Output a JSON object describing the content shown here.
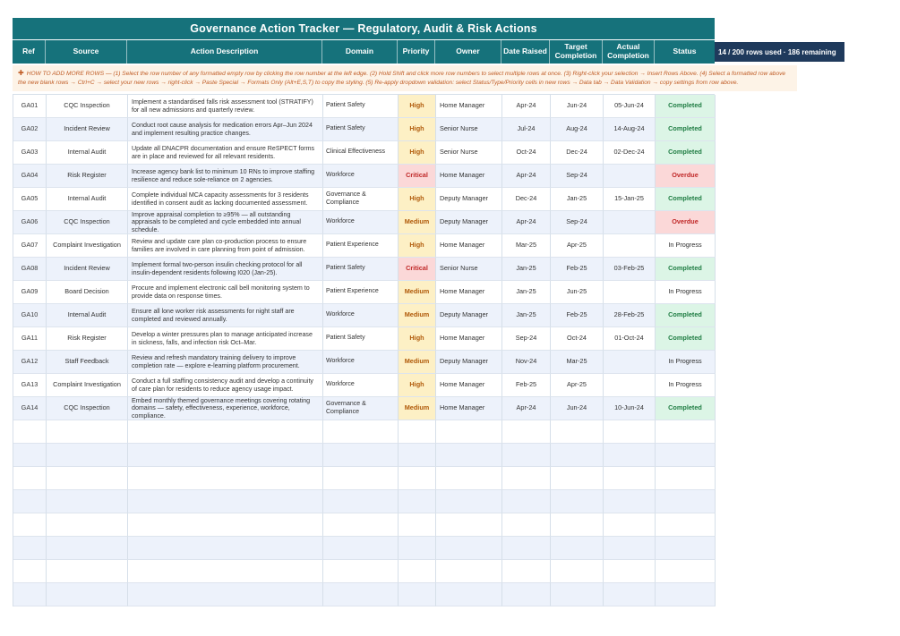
{
  "header": {
    "title": "Governance Action Tracker — Regulatory, Audit & Risk Actions"
  },
  "badge": {
    "text": "14 / 200 rows used  ·  186 remaining"
  },
  "help": {
    "icon": "✚",
    "text": "HOW TO ADD MORE ROWS  —  (1) Select the row number of any formatted empty row by clicking the row number at the left edge.  (2) Hold Shift and click more row numbers to select multiple rows at once.  (3) Right-click your selection  →  Insert Rows Above.  (4) Select a formatted row above the new blank rows  →  Ctrl+C  →  select your new rows  →  right-click  →  Paste Special  →  Formats Only (Alt+E,S,T) to copy the styling.  (5) Re-apply dropdown validation: select Status/Type/Priority cells in new rows  →  Data tab  →  Data Validation  →  copy settings from row above."
  },
  "colors": {
    "teal_header": "#16727b",
    "navy_badge": "#1f3a5c",
    "help_background": "#fdf3e7",
    "help_text": "#bf5a23",
    "row_stripe": "#edf2fb",
    "priority_yellow_bg": "#fdf0c5",
    "priority_yellow_text": "#b05a0a",
    "critical_bg": "#fbd8d8",
    "critical_text": "#c02828",
    "completed_bg": "#dcf5e6",
    "completed_text": "#1e7c42"
  },
  "table": {
    "columns": [
      "Ref",
      "Source",
      "Action Description",
      "Domain",
      "Priority",
      "Owner",
      "Date Raised",
      "Target Completion",
      "Actual Completion",
      "Status"
    ],
    "empty_row_count": 8,
    "rows": [
      {
        "ref": "GA01",
        "source": "CQC Inspection",
        "description": "Implement a standardised falls risk assessment tool (STRATIFY) for all new admissions and quarterly review.",
        "domain": "Patient Safety",
        "priority": "High",
        "owner": "Home Manager",
        "date_raised": "Apr-24",
        "target_completion": "Jun-24",
        "actual_completion": "05-Jun-24",
        "status": "Completed"
      },
      {
        "ref": "GA02",
        "source": "Incident Review",
        "description": "Conduct root cause analysis for medication errors Apr–Jun 2024 and implement resulting practice changes.",
        "domain": "Patient Safety",
        "priority": "High",
        "owner": "Senior Nurse",
        "date_raised": "Jul-24",
        "target_completion": "Aug-24",
        "actual_completion": "14-Aug-24",
        "status": "Completed"
      },
      {
        "ref": "GA03",
        "source": "Internal Audit",
        "description": "Update all DNACPR documentation and ensure ReSPECT forms are in place and reviewed for all relevant residents.",
        "domain": "Clinical Effectiveness",
        "priority": "High",
        "owner": "Senior Nurse",
        "date_raised": "Oct-24",
        "target_completion": "Dec-24",
        "actual_completion": "02-Dec-24",
        "status": "Completed"
      },
      {
        "ref": "GA04",
        "source": "Risk Register",
        "description": "Increase agency bank list to minimum 10 RNs to improve staffing resilience and reduce sole-reliance on 2 agencies.",
        "domain": "Workforce",
        "priority": "Critical",
        "owner": "Home Manager",
        "date_raised": "Apr-24",
        "target_completion": "Sep-24",
        "actual_completion": "",
        "status": "Overdue"
      },
      {
        "ref": "GA05",
        "source": "Internal Audit",
        "description": "Complete individual MCA capacity assessments for 3 residents identified in consent audit as lacking documented assessment.",
        "domain": "Governance & Compliance",
        "priority": "High",
        "owner": "Deputy Manager",
        "date_raised": "Dec-24",
        "target_completion": "Jan-25",
        "actual_completion": "15-Jan-25",
        "status": "Completed"
      },
      {
        "ref": "GA06",
        "source": "CQC Inspection",
        "description": "Improve appraisal completion to ≥95% — all outstanding appraisals to be completed and cycle embedded into annual schedule.",
        "domain": "Workforce",
        "priority": "Medium",
        "owner": "Deputy Manager",
        "date_raised": "Apr-24",
        "target_completion": "Sep-24",
        "actual_completion": "",
        "status": "Overdue"
      },
      {
        "ref": "GA07",
        "source": "Complaint Investigation",
        "description": "Review and update care plan co-production process to ensure families are involved in care planning from point of admission.",
        "domain": "Patient Experience",
        "priority": "High",
        "owner": "Home Manager",
        "date_raised": "Mar-25",
        "target_completion": "Apr-25",
        "actual_completion": "",
        "status": "In Progress"
      },
      {
        "ref": "GA08",
        "source": "Incident Review",
        "description": "Implement formal two-person insulin checking protocol for all insulin-dependent residents following I020 (Jan-25).",
        "domain": "Patient Safety",
        "priority": "Critical",
        "owner": "Senior Nurse",
        "date_raised": "Jan-25",
        "target_completion": "Feb-25",
        "actual_completion": "03-Feb-25",
        "status": "Completed"
      },
      {
        "ref": "GA09",
        "source": "Board Decision",
        "description": "Procure and implement electronic call bell monitoring system to provide data on response times.",
        "domain": "Patient Experience",
        "priority": "Medium",
        "owner": "Home Manager",
        "date_raised": "Jan-25",
        "target_completion": "Jun-25",
        "actual_completion": "",
        "status": "In Progress"
      },
      {
        "ref": "GA10",
        "source": "Internal Audit",
        "description": "Ensure all lone worker risk assessments for night staff are completed and reviewed annually.",
        "domain": "Workforce",
        "priority": "Medium",
        "owner": "Deputy Manager",
        "date_raised": "Jan-25",
        "target_completion": "Feb-25",
        "actual_completion": "28-Feb-25",
        "status": "Completed"
      },
      {
        "ref": "GA11",
        "source": "Risk Register",
        "description": "Develop a winter pressures plan to manage anticipated increase in sickness, falls, and infection risk Oct–Mar.",
        "domain": "Patient Safety",
        "priority": "High",
        "owner": "Home Manager",
        "date_raised": "Sep-24",
        "target_completion": "Oct-24",
        "actual_completion": "01-Oct-24",
        "status": "Completed"
      },
      {
        "ref": "GA12",
        "source": "Staff Feedback",
        "description": "Review and refresh mandatory training delivery to improve completion rate — explore e-learning platform procurement.",
        "domain": "Workforce",
        "priority": "Medium",
        "owner": "Deputy Manager",
        "date_raised": "Nov-24",
        "target_completion": "Mar-25",
        "actual_completion": "",
        "status": "In Progress"
      },
      {
        "ref": "GA13",
        "source": "Complaint Investigation",
        "description": "Conduct a full staffing consistency audit and develop a continuity of care plan for residents to reduce agency usage impact.",
        "domain": "Workforce",
        "priority": "High",
        "owner": "Home Manager",
        "date_raised": "Feb-25",
        "target_completion": "Apr-25",
        "actual_completion": "",
        "status": "In Progress"
      },
      {
        "ref": "GA14",
        "source": "CQC Inspection",
        "description": "Embed monthly themed governance meetings covering rotating domains — safety, effectiveness, experience, workforce, compliance.",
        "domain": "Governance & Compliance",
        "priority": "Medium",
        "owner": "Home Manager",
        "date_raised": "Apr-24",
        "target_completion": "Jun-24",
        "actual_completion": "10-Jun-24",
        "status": "Completed"
      }
    ]
  }
}
